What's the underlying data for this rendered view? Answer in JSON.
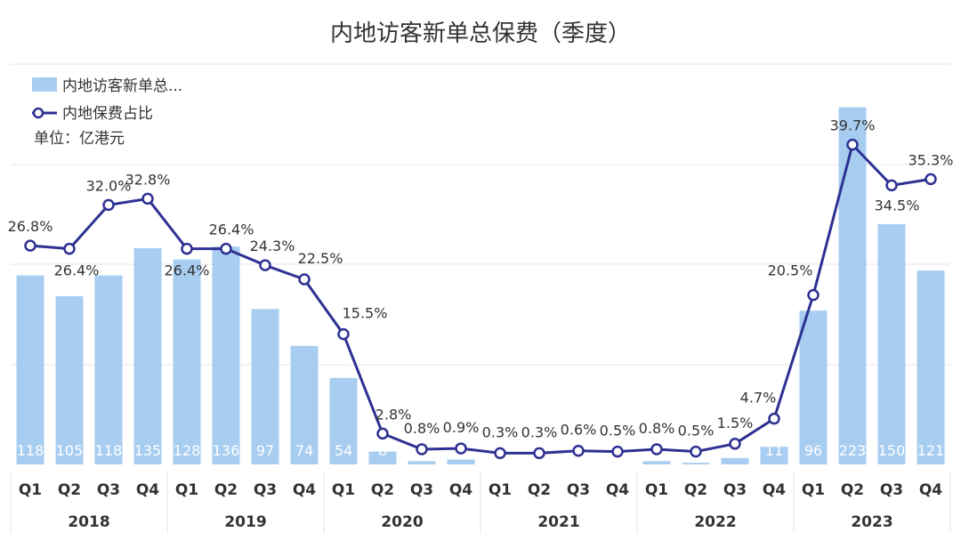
{
  "chart_data": {
    "type": "bar+line",
    "title": "内地访客新单总保费（季度）",
    "unit_label": "单位：亿港元",
    "legend": [
      "内地访客新单总...",
      "内地保费占比"
    ],
    "colors": {
      "bar": "#a7cdf0",
      "line": "#2e3192",
      "grid": "#e6e6e6"
    },
    "categories": [
      "Q1",
      "Q2",
      "Q3",
      "Q4",
      "Q1",
      "Q2",
      "Q3",
      "Q4",
      "Q1",
      "Q2",
      "Q3",
      "Q4",
      "Q1",
      "Q2",
      "Q3",
      "Q4",
      "Q1",
      "Q2",
      "Q3",
      "Q4",
      "Q1",
      "Q2",
      "Q3",
      "Q4"
    ],
    "years": [
      "2018",
      "2019",
      "2020",
      "2021",
      "2022",
      "2023"
    ],
    "series": [
      {
        "name": "内地访客新单总...",
        "type": "bar",
        "values": [
          118,
          105,
          118,
          135,
          128,
          136,
          97,
          74,
          54,
          8,
          2,
          3,
          0,
          0,
          0,
          0,
          2,
          1,
          4,
          11,
          96,
          223,
          150,
          121
        ],
        "labels": [
          "118",
          "105",
          "118",
          "135",
          "128",
          "136",
          "97",
          "74",
          "54",
          "8",
          "",
          "",
          "",
          "",
          "",
          "",
          "",
          "",
          "",
          "11",
          "96",
          "223",
          "150",
          "121"
        ]
      },
      {
        "name": "内地保费占比",
        "type": "line",
        "values": [
          26.8,
          26.4,
          32.0,
          32.8,
          26.4,
          26.4,
          24.3,
          22.5,
          15.5,
          2.8,
          0.8,
          0.9,
          0.3,
          0.3,
          0.6,
          0.5,
          0.8,
          0.5,
          1.5,
          4.7,
          20.5,
          39.7,
          34.5,
          35.3
        ],
        "labels": [
          "26.8%",
          "26.4%",
          "32.0%",
          "32.8%",
          "26.4%",
          "26.4%",
          "24.3%",
          "22.5%",
          "15.5%",
          "2.8%",
          "0.8%",
          "0.9%",
          "0.3%",
          "0.3%",
          "0.6%",
          "0.5%",
          "0.8%",
          "0.5%",
          "1.5%",
          "4.7%",
          "20.5%",
          "39.7%",
          "34.5%",
          "35.3%"
        ]
      }
    ],
    "bar_ylim": [
      0,
      250
    ],
    "line_ylim": [
      0,
      45
    ],
    "grid": true
  }
}
